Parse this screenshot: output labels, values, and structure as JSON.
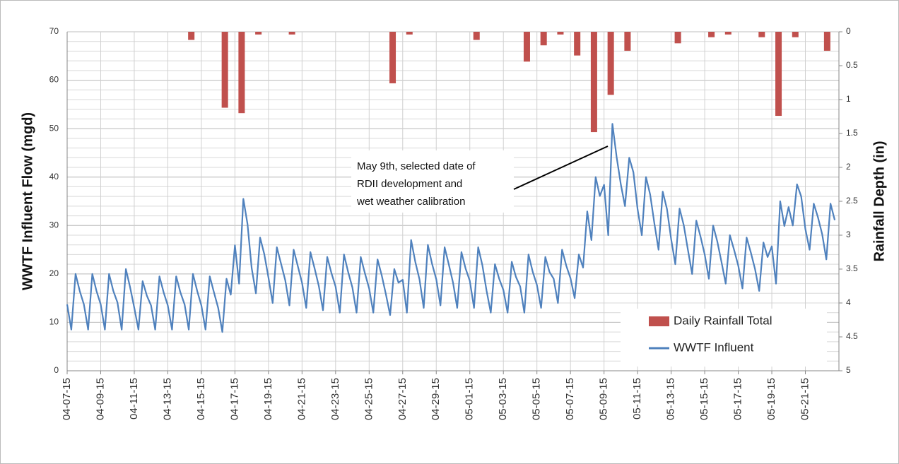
{
  "chart_data": {
    "type": "combo",
    "y_label": "WWTF Influent Flow (mgd)",
    "y2_label": "Rainfall Depth (in)",
    "annotation": [
      "May 9th, selected date of",
      "RDII development and",
      "wet weather calibration"
    ],
    "xlim": [
      0,
      46
    ],
    "xticks": [
      {
        "value": 0,
        "label": "04-07-15"
      },
      {
        "value": 2,
        "label": "04-09-15"
      },
      {
        "value": 4,
        "label": "04-11-15"
      },
      {
        "value": 6,
        "label": "04-13-15"
      },
      {
        "value": 8,
        "label": "04-15-15"
      },
      {
        "value": 10,
        "label": "04-17-15"
      },
      {
        "value": 12,
        "label": "04-19-15"
      },
      {
        "value": 14,
        "label": "04-21-15"
      },
      {
        "value": 16,
        "label": "04-23-15"
      },
      {
        "value": 18,
        "label": "04-25-15"
      },
      {
        "value": 20,
        "label": "04-27-15"
      },
      {
        "value": 22,
        "label": "04-29-15"
      },
      {
        "value": 24,
        "label": "05-01-15"
      },
      {
        "value": 26,
        "label": "05-03-15"
      },
      {
        "value": 28,
        "label": "05-05-15"
      },
      {
        "value": 30,
        "label": "05-07-15"
      },
      {
        "value": 32,
        "label": "05-09-15"
      },
      {
        "value": 34,
        "label": "05-11-15"
      },
      {
        "value": 36,
        "label": "05-13-15"
      },
      {
        "value": 38,
        "label": "05-15-15"
      },
      {
        "value": 40,
        "label": "05-17-15"
      },
      {
        "value": 42,
        "label": "05-19-15"
      },
      {
        "value": 44,
        "label": "05-21-15"
      }
    ],
    "ylim": [
      0,
      70
    ],
    "yticks": [
      0,
      10,
      20,
      30,
      40,
      50,
      60,
      70
    ],
    "minor_grid_step": 2,
    "y2lim": [
      0,
      5
    ],
    "y2_inverted": true,
    "y2ticks": [
      0,
      0.5,
      1,
      1.5,
      2,
      2.5,
      3,
      3.5,
      4,
      4.5,
      5
    ],
    "grid": true,
    "legend": "lower right",
    "series": [
      {
        "name": "Daily Rainfall Total",
        "type": "bar",
        "axis": "y2",
        "color": "#c0504d",
        "x": [
          7.4,
          9.4,
          10.4,
          11.4,
          13.4,
          19.4,
          20.4,
          24.4,
          27.4,
          28.4,
          29.4,
          30.4,
          31.4,
          32.4,
          33.4,
          36.4,
          38.4,
          39.4,
          41.4,
          42.4,
          43.4,
          45.3
        ],
        "values": [
          0.12,
          1.12,
          1.2,
          0.04,
          0.04,
          0.76,
          0.04,
          0.12,
          0.44,
          0.2,
          0.04,
          0.35,
          1.48,
          0.93,
          0.28,
          0.17,
          0.08,
          0.04,
          0.08,
          1.24,
          0.08,
          0.28
        ]
      },
      {
        "name": "WWTF Influent",
        "type": "line",
        "color": "#4f81bd",
        "x": [
          0,
          0.25,
          0.5,
          0.75,
          1,
          1.25,
          1.5,
          1.75,
          2,
          2.25,
          2.5,
          2.75,
          3,
          3.25,
          3.5,
          3.75,
          4,
          4.25,
          4.5,
          4.75,
          5,
          5.25,
          5.5,
          5.75,
          6,
          6.25,
          6.5,
          6.75,
          7,
          7.25,
          7.5,
          7.75,
          8,
          8.25,
          8.5,
          8.75,
          9,
          9.25,
          9.5,
          9.75,
          10,
          10.25,
          10.5,
          10.75,
          11,
          11.25,
          11.5,
          11.75,
          12,
          12.25,
          12.5,
          12.75,
          13,
          13.25,
          13.5,
          13.75,
          14,
          14.25,
          14.5,
          14.75,
          15,
          15.25,
          15.5,
          15.75,
          16,
          16.25,
          16.5,
          16.75,
          17,
          17.25,
          17.5,
          17.75,
          18,
          18.25,
          18.5,
          18.75,
          19,
          19.25,
          19.5,
          19.75,
          20,
          20.25,
          20.5,
          20.75,
          21,
          21.25,
          21.5,
          21.75,
          22,
          22.25,
          22.5,
          22.75,
          23,
          23.25,
          23.5,
          23.75,
          24,
          24.25,
          24.5,
          24.75,
          25,
          25.25,
          25.5,
          25.75,
          26,
          26.25,
          26.5,
          26.75,
          27,
          27.25,
          27.5,
          27.75,
          28,
          28.25,
          28.5,
          28.75,
          29,
          29.25,
          29.5,
          29.75,
          30,
          30.25,
          30.5,
          30.75,
          31,
          31.25,
          31.5,
          31.75,
          32,
          32.25,
          32.5,
          32.75,
          33,
          33.25,
          33.5,
          33.75,
          34,
          34.25,
          34.5,
          34.75,
          35,
          35.25,
          35.5,
          35.75,
          36,
          36.25,
          36.5,
          36.75,
          37,
          37.25,
          37.5,
          37.75,
          38,
          38.25,
          38.5,
          38.75,
          39,
          39.25,
          39.5,
          39.75,
          40,
          40.25,
          40.5,
          40.75,
          41,
          41.25,
          41.5,
          41.75,
          42,
          42.25,
          42.5,
          42.75,
          43,
          43.25,
          43.5,
          43.75,
          44,
          44.25,
          44.5,
          44.75,
          45,
          45.25,
          45.5,
          45.75
        ],
        "values": [
          13.7,
          8.5,
          20,
          16.5,
          13.7,
          8.5,
          20,
          16.5,
          13.7,
          8.5,
          20,
          16.5,
          14.1,
          8.5,
          21,
          17.3,
          13,
          8.5,
          18.5,
          15.5,
          13.5,
          8.5,
          19.5,
          16.2,
          13.5,
          8.5,
          19.5,
          16.2,
          13.7,
          8.5,
          20,
          16.5,
          13.5,
          8.5,
          19.5,
          16.2,
          13,
          8,
          19,
          15.7,
          25.9,
          18,
          35.5,
          30.3,
          21.2,
          16,
          27.5,
          24.1,
          19.2,
          14,
          25.5,
          22.1,
          18.7,
          13.5,
          25,
          21.6,
          18.2,
          13,
          24.5,
          21.1,
          17.5,
          12.5,
          23.5,
          20.2,
          17.4,
          12,
          24,
          20.4,
          17.2,
          12,
          23.5,
          20.1,
          17,
          12,
          23,
          19.7,
          15.8,
          11.5,
          21,
          18.2,
          18.8,
          12,
          27,
          22.5,
          18.9,
          13,
          26,
          22.1,
          18.9,
          13.5,
          25.5,
          21.9,
          18.2,
          13,
          24.5,
          21.1,
          18.6,
          13,
          25.5,
          21.8,
          16.5,
          12,
          22,
          19,
          16.7,
          12,
          22.5,
          19.4,
          17.4,
          12,
          24,
          20.4,
          17.7,
          13,
          23.5,
          20.4,
          19,
          14,
          25,
          21.7,
          19.1,
          15,
          24,
          21.3,
          32.9,
          27,
          40,
          36.1,
          38.4,
          28,
          51,
          44.1,
          38.5,
          34,
          44,
          41,
          33.4,
          28,
          40,
          36.4,
          30.4,
          25,
          37,
          33.4,
          27.2,
          22,
          33.5,
          30.1,
          25,
          20,
          31,
          27.7,
          24,
          19,
          30,
          26.7,
          22.5,
          18,
          28,
          25,
          21.7,
          17,
          27.5,
          24.4,
          21,
          16.5,
          26.5,
          23.5,
          25.7,
          18,
          35,
          29.9,
          33.8,
          30,
          38.5,
          36,
          29.3,
          25,
          34.5,
          31.7,
          28.2,
          23,
          34.5,
          31.1
        ]
      }
    ]
  }
}
